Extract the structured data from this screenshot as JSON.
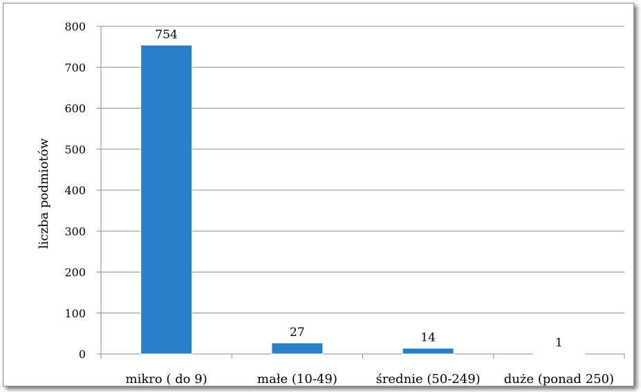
{
  "chart_data": {
    "type": "bar",
    "categories": [
      "mikro ( do 9)",
      "małe (10-49)",
      "średnie (50-249)",
      "duże (ponad 250)"
    ],
    "values": [
      754,
      27,
      14,
      1
    ],
    "data_labels": [
      "754",
      "27",
      "14",
      "1"
    ],
    "title": "",
    "xlabel": "",
    "ylabel": "liczba podmiotów",
    "ylim": [
      0,
      800
    ],
    "yticks": [
      0,
      100,
      200,
      300,
      400,
      500,
      600,
      700,
      800
    ],
    "grid": true,
    "legend": "none",
    "colors": {
      "bar": "#2a7fc9",
      "grid": "#8c8c8c",
      "axis": "#8c8c8c"
    }
  }
}
